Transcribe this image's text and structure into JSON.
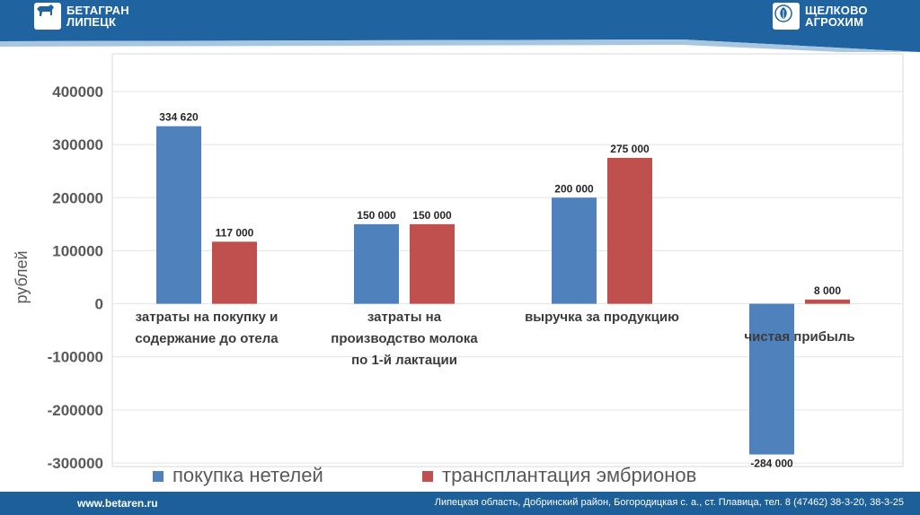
{
  "header": {
    "left_logo": {
      "line1": "БЕТАГРАН",
      "line2": "ЛИПЕЦК",
      "icon": "cow-icon"
    },
    "right_logo": {
      "line1": "ЩЕЛКОВО",
      "line2": "АГРОХИМ",
      "icon": "leaf-icon"
    },
    "color": "#1f63a1"
  },
  "chart_data": {
    "type": "bar",
    "title": "",
    "xlabel": "",
    "ylabel": "рублей",
    "ylim": [
      -300000,
      400000
    ],
    "yticks": [
      "400000",
      "300000",
      "200000",
      "100000",
      "0",
      "-100000",
      "-200000",
      "-300000"
    ],
    "ytick_values": [
      400000,
      300000,
      200000,
      100000,
      0,
      -100000,
      -200000,
      -300000
    ],
    "grid": true,
    "legend_position": "bottom",
    "categories": [
      [
        "затраты на покупку и",
        "содержание до отела"
      ],
      [
        "затраты на",
        "производство  молока",
        "по 1-й лактации"
      ],
      [
        "выручка  за продукцию"
      ],
      [
        "чистая  прибыль"
      ]
    ],
    "series": [
      {
        "name": "покупка нетелей",
        "color": "#4f81bd",
        "values": [
          334620,
          150000,
          200000,
          -284000
        ],
        "labels": [
          "334 620",
          "150 000",
          "200 000",
          "-284 000"
        ]
      },
      {
        "name": "трансплантация эмбрионов",
        "color": "#c0504d",
        "values": [
          117000,
          150000,
          275000,
          8000
        ],
        "labels": [
          "117 000",
          "150 000",
          "275 000",
          "8 000"
        ]
      }
    ]
  },
  "footer": {
    "site": "www.betaren.ru",
    "address": "Липецкая область, Добринский район, Богородицкая с. а., ст. Плавица, тел. 8 (47462) 38-3-20, 38-3-25"
  }
}
